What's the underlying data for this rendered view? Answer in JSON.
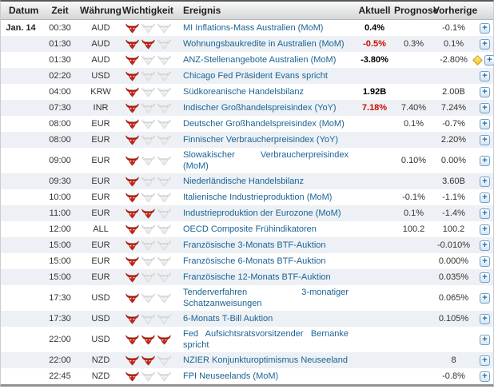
{
  "header": {
    "datum": "Datum",
    "zeit": "Zeit",
    "waehrung": "Währung",
    "wichtigkeit": "Wichtigkeit",
    "ereignis": "Ereignis",
    "aktuell": "Aktuell",
    "prognose": "Prognose",
    "vorherige": "Vorherige"
  },
  "icons": {
    "expand_label": "+",
    "importance_icon": "bull-icon",
    "alert_icon": "yellow-diamond-icon"
  },
  "colors": {
    "event_link": "#1b6394",
    "actual_bold": "#000000",
    "actual_negative": "#cc0a00",
    "row_alt": "#edf1f5",
    "importance_active": "#c9281c",
    "importance_active_stroke": "#8e1409",
    "importance_inactive": "#e9eaea",
    "importance_inactive_stroke": "#c6c9cb"
  },
  "rows": [
    {
      "date": "Jan. 14",
      "time": "00:30",
      "currency": "AUD",
      "importance": 1,
      "event": "MI Inflations-Mass Australien (MoM)",
      "actual": "0.4%",
      "actual_style": "bold",
      "forecast": "",
      "previous": "-0.1%",
      "alert": false
    },
    {
      "date": "",
      "time": "01:30",
      "currency": "AUD",
      "importance": 2,
      "event": "Wohnungsbaukredite in Australien (MoM)",
      "actual": "-0.5%",
      "actual_style": "red",
      "forecast": "0.3%",
      "previous": "0.1%",
      "alert": false
    },
    {
      "date": "",
      "time": "01:30",
      "currency": "AUD",
      "importance": 1,
      "event": "ANZ-Stellenangebote Australien (MoM)",
      "actual": "-3.80%",
      "actual_style": "bold",
      "forecast": "",
      "previous": "-2.80%",
      "alert": true
    },
    {
      "date": "",
      "time": "02:20",
      "currency": "USD",
      "importance": 1,
      "event": "Chicago Fed Präsident Evans spricht",
      "actual": "",
      "actual_style": "",
      "forecast": "",
      "previous": "",
      "alert": false
    },
    {
      "date": "",
      "time": "04:00",
      "currency": "KRW",
      "importance": 1,
      "event": "Südkoreanische Handelsbilanz",
      "actual": "1.92B",
      "actual_style": "bold",
      "forecast": "",
      "previous": "2.00B",
      "alert": false
    },
    {
      "date": "",
      "time": "07:30",
      "currency": "INR",
      "importance": 1,
      "event": "Indischer Großhandelspreisindex (YoY)",
      "actual": "7.18%",
      "actual_style": "red",
      "forecast": "7.40%",
      "previous": "7.24%",
      "alert": false
    },
    {
      "date": "",
      "time": "08:00",
      "currency": "EUR",
      "importance": 1,
      "event": "Deutscher Großhandelspreisindex (MoM)",
      "actual": "",
      "actual_style": "",
      "forecast": "0.1%",
      "previous": "-0.7%",
      "alert": false
    },
    {
      "date": "",
      "time": "08:00",
      "currency": "EUR",
      "importance": 1,
      "event": "Finnischer Verbraucherpreisindex (YoY)",
      "actual": "",
      "actual_style": "",
      "forecast": "",
      "previous": "2.20%",
      "alert": false
    },
    {
      "date": "",
      "time": "09:00",
      "currency": "EUR",
      "importance": 1,
      "event": "Slowakischer Verbraucherpreisindex (MoM)",
      "actual": "",
      "actual_style": "",
      "forecast": "0.10%",
      "previous": "0.00%",
      "alert": false
    },
    {
      "date": "",
      "time": "09:30",
      "currency": "EUR",
      "importance": 1,
      "event": "Niederländische Handelsbilanz",
      "actual": "",
      "actual_style": "",
      "forecast": "",
      "previous": "3.60B",
      "alert": false
    },
    {
      "date": "",
      "time": "10:00",
      "currency": "EUR",
      "importance": 1,
      "event": "Italienische Industrieproduktion (MoM)",
      "actual": "",
      "actual_style": "",
      "forecast": "-0.1%",
      "previous": "-1.1%",
      "alert": false
    },
    {
      "date": "",
      "time": "11:00",
      "currency": "EUR",
      "importance": 2,
      "event": "Industrieproduktion der Eurozone (MoM)",
      "actual": "",
      "actual_style": "",
      "forecast": "0.1%",
      "previous": "-1.4%",
      "alert": false
    },
    {
      "date": "",
      "time": "12:00",
      "currency": "ALL",
      "importance": 1,
      "event": "OECD Composite Frühindikatoren",
      "actual": "",
      "actual_style": "",
      "forecast": "100.2",
      "previous": "100.2",
      "alert": false
    },
    {
      "date": "",
      "time": "15:00",
      "currency": "EUR",
      "importance": 1,
      "event": "Französische 3-Monats BTF-Auktion",
      "actual": "",
      "actual_style": "",
      "forecast": "",
      "previous": "-0.010%",
      "alert": false
    },
    {
      "date": "",
      "time": "15:00",
      "currency": "EUR",
      "importance": 1,
      "event": "Französische 6-Monats BTF-Auktion",
      "actual": "",
      "actual_style": "",
      "forecast": "",
      "previous": "0.000%",
      "alert": false
    },
    {
      "date": "",
      "time": "15:00",
      "currency": "EUR",
      "importance": 1,
      "event": "Französische 12-Monats BTF-Auktion",
      "actual": "",
      "actual_style": "",
      "forecast": "",
      "previous": "0.035%",
      "alert": false
    },
    {
      "date": "",
      "time": "17:30",
      "currency": "USD",
      "importance": 1,
      "event": "Tenderverfahren 3-monatiger Schatzanweisungen",
      "actual": "",
      "actual_style": "",
      "forecast": "",
      "previous": "0.065%",
      "alert": false
    },
    {
      "date": "",
      "time": "17:30",
      "currency": "USD",
      "importance": 1,
      "event": "6-Monats T-Bill Auktion",
      "actual": "",
      "actual_style": "",
      "forecast": "",
      "previous": "0.105%",
      "alert": false
    },
    {
      "date": "",
      "time": "22:00",
      "currency": "USD",
      "importance": 3,
      "event": "Fed Aufsichtsratsvorsitzender Bernanke spricht",
      "actual": "",
      "actual_style": "",
      "forecast": "",
      "previous": "",
      "alert": false
    },
    {
      "date": "",
      "time": "22:00",
      "currency": "NZD",
      "importance": 2,
      "event": "NZIER Konjunkturoptimismus Neuseeland",
      "actual": "",
      "actual_style": "",
      "forecast": "",
      "previous": "8",
      "alert": false
    },
    {
      "date": "",
      "time": "22:45",
      "currency": "NZD",
      "importance": 1,
      "event": "FPI Neuseelands (MoM)",
      "actual": "",
      "actual_style": "",
      "forecast": "",
      "previous": "-0.8%",
      "alert": false
    }
  ]
}
